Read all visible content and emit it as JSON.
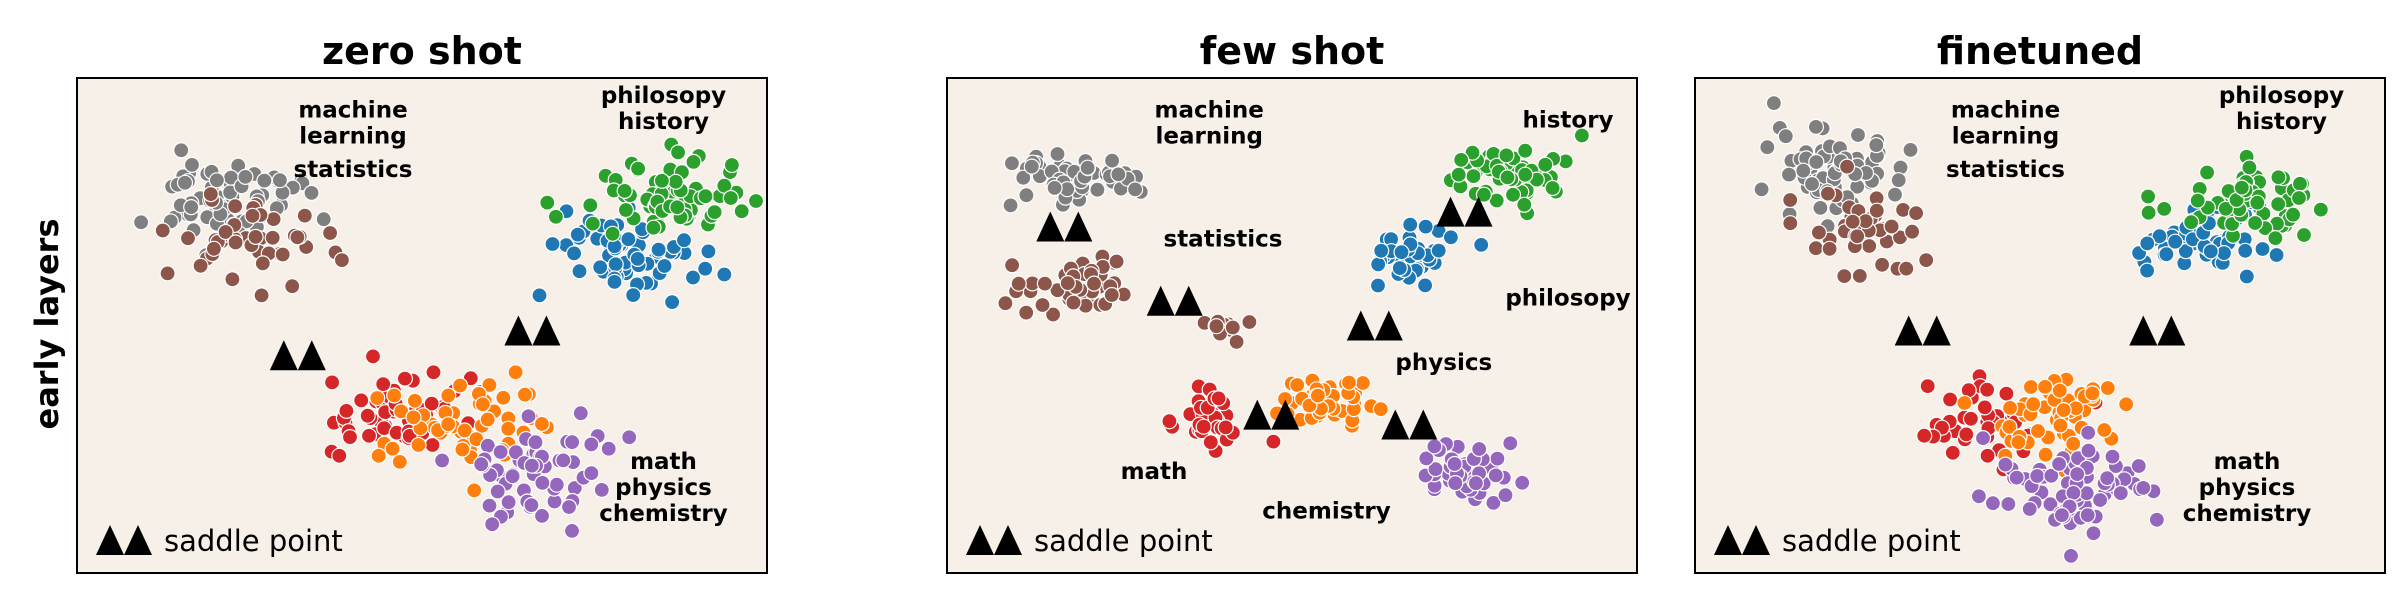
{
  "figure": {
    "row_label": "early layers",
    "legend_label": "saddle point",
    "colors": {
      "background": "#f7f0e9",
      "machine learning": "#7f7f7f",
      "statistics": "#8c564b",
      "philosophy": "#1f77b4",
      "history": "#2ca02c",
      "math": "#d62728",
      "physics": "#ff7f0e",
      "chemistry": "#9467bd",
      "saddle": "#000000"
    }
  },
  "chart_data": [
    {
      "type": "scatter",
      "title": "zero shot",
      "xlim": [
        0,
        100
      ],
      "ylim": [
        0,
        100
      ],
      "grid": false,
      "legend": "bottom-left",
      "clusters": [
        {
          "name": "machine learning",
          "cx": 21,
          "cy": 76,
          "sx": 5.5,
          "sy": 4.5,
          "n": 70
        },
        {
          "name": "statistics",
          "cx": 25,
          "cy": 67,
          "sx": 6,
          "sy": 4,
          "n": 45
        },
        {
          "name": "philosophy",
          "cx": 80,
          "cy": 65,
          "sx": 5,
          "sy": 5,
          "n": 65
        },
        {
          "name": "history",
          "cx": 85,
          "cy": 75,
          "sx": 5.5,
          "sy": 4.5,
          "n": 70
        },
        {
          "name": "math",
          "cx": 47,
          "cy": 32,
          "sx": 6,
          "sy": 4,
          "n": 55
        },
        {
          "name": "physics",
          "cx": 56,
          "cy": 30,
          "sx": 6,
          "sy": 4.5,
          "n": 55
        },
        {
          "name": "chemistry",
          "cx": 66,
          "cy": 20,
          "sx": 5,
          "sy": 5,
          "n": 60
        }
      ],
      "saddle_points": [
        [
          32,
          44
        ],
        [
          66,
          49
        ]
      ],
      "annotations": [
        {
          "lines": [
            "machine",
            "learning"
          ],
          "x": 40,
          "y": 92
        },
        {
          "lines": [
            "statistics"
          ],
          "x": 40,
          "y": 80
        },
        {
          "lines": [
            "philosopy",
            "history"
          ],
          "x": 85,
          "y": 95
        },
        {
          "lines": [
            "math",
            "physics",
            "chemistry"
          ],
          "x": 85,
          "y": 21
        }
      ]
    },
    {
      "type": "scatter",
      "title": "few shot",
      "xlim": [
        0,
        100
      ],
      "ylim": [
        0,
        100
      ],
      "grid": false,
      "legend": "bottom-left",
      "clusters": [
        {
          "name": "machine learning",
          "cx": 19,
          "cy": 79,
          "sx": 5,
          "sy": 2.8,
          "n": 55
        },
        {
          "name": "statistics",
          "cx": 19,
          "cy": 59,
          "sx": 4,
          "sy": 2.8,
          "n": 45
        },
        {
          "name": "history",
          "cx": 81,
          "cy": 81,
          "sx": 4,
          "sy": 3.5,
          "n": 55
        },
        {
          "name": "philosophy",
          "cx": 68,
          "cy": 64,
          "sx": 3.2,
          "sy": 2.8,
          "n": 40
        },
        {
          "name": "statistics",
          "cx": 40,
          "cy": 50,
          "sx": 1.5,
          "sy": 1.2,
          "n": 12
        },
        {
          "name": "math",
          "cx": 39,
          "cy": 31,
          "sx": 2.8,
          "sy": 3.2,
          "n": 40
        },
        {
          "name": "physics",
          "cx": 55,
          "cy": 35,
          "sx": 3.5,
          "sy": 3,
          "n": 45
        },
        {
          "name": "chemistry",
          "cx": 75,
          "cy": 20,
          "sx": 3.5,
          "sy": 3.5,
          "n": 45
        }
      ],
      "saddle_points": [
        [
          17,
          70
        ],
        [
          33,
          55
        ],
        [
          62,
          50
        ],
        [
          47,
          32
        ],
        [
          67,
          30
        ],
        [
          75,
          73
        ]
      ],
      "annotations": [
        {
          "lines": [
            "machine",
            "learning"
          ],
          "x": 38,
          "y": 92
        },
        {
          "lines": [
            "statistics"
          ],
          "x": 40,
          "y": 66
        },
        {
          "lines": [
            "history"
          ],
          "x": 90,
          "y": 90
        },
        {
          "lines": [
            "philosopy"
          ],
          "x": 90,
          "y": 54
        },
        {
          "lines": [
            "physics"
          ],
          "x": 72,
          "y": 41
        },
        {
          "lines": [
            "math"
          ],
          "x": 30,
          "y": 19
        },
        {
          "lines": [
            "chemistry"
          ],
          "x": 55,
          "y": 11
        }
      ]
    },
    {
      "type": "scatter",
      "title": "finetuned",
      "xlim": [
        0,
        100
      ],
      "ylim": [
        0,
        100
      ],
      "grid": false,
      "legend": "bottom-left",
      "clusters": [
        {
          "name": "machine learning",
          "cx": 21,
          "cy": 81,
          "sx": 5,
          "sy": 5,
          "n": 70
        },
        {
          "name": "statistics",
          "cx": 24,
          "cy": 70,
          "sx": 4.5,
          "sy": 4,
          "n": 45
        },
        {
          "name": "philosophy",
          "cx": 73,
          "cy": 67,
          "sx": 4.5,
          "sy": 4,
          "n": 55
        },
        {
          "name": "history",
          "cx": 81,
          "cy": 75,
          "sx": 5,
          "sy": 4,
          "n": 60
        },
        {
          "name": "math",
          "cx": 42,
          "cy": 31,
          "sx": 5,
          "sy": 3.5,
          "n": 45
        },
        {
          "name": "physics",
          "cx": 52,
          "cy": 32,
          "sx": 6,
          "sy": 4,
          "n": 60
        },
        {
          "name": "chemistry",
          "cx": 55,
          "cy": 17,
          "sx": 6,
          "sy": 5,
          "n": 70
        }
      ],
      "saddle_points": [
        [
          33,
          49
        ],
        [
          67,
          49
        ]
      ],
      "annotations": [
        {
          "lines": [
            "machine",
            "learning"
          ],
          "x": 45,
          "y": 92
        },
        {
          "lines": [
            "statistics"
          ],
          "x": 45,
          "y": 80
        },
        {
          "lines": [
            "philosopy",
            "history"
          ],
          "x": 85,
          "y": 95
        },
        {
          "lines": [
            "math",
            "physics",
            "chemistry"
          ],
          "x": 80,
          "y": 21
        }
      ]
    }
  ]
}
